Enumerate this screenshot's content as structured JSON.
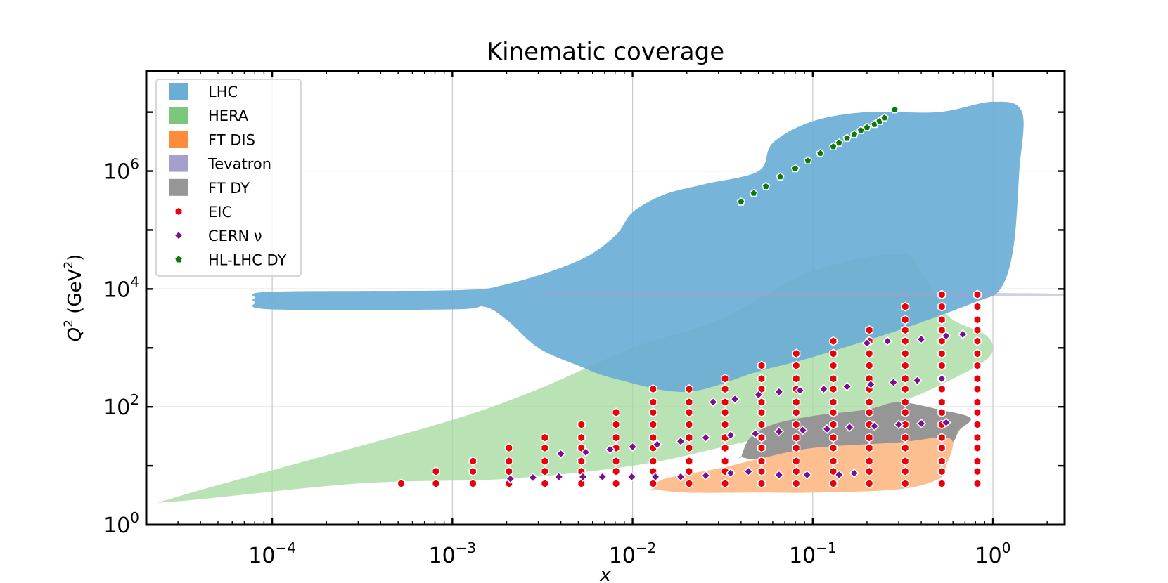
{
  "chart_data": {
    "type": "scatter",
    "title": "Kinematic coverage",
    "xlabel": "x",
    "ylabel": "Q² (GeV²)",
    "ylabel_main": "Q",
    "ylabel_sup": "2",
    "ylabel_rest_a": " (GeV",
    "ylabel_rest_b": ")",
    "xscale": "log",
    "yscale": "log",
    "xlim": [
      2e-05,
      2.5
    ],
    "ylim": [
      1,
      50000000
    ],
    "grid": true,
    "x_ticks": [
      {
        "base": "10",
        "exp": "−4",
        "value": 0.0001
      },
      {
        "base": "10",
        "exp": "−3",
        "value": 0.001
      },
      {
        "base": "10",
        "exp": "−2",
        "value": 0.01
      },
      {
        "base": "10",
        "exp": "−1",
        "value": 0.1
      },
      {
        "base": "10",
        "exp": "0",
        "value": 1
      }
    ],
    "y_ticks": [
      {
        "base": "10",
        "exp": "0",
        "value": 1
      },
      {
        "base": "10",
        "exp": "2",
        "value": 100
      },
      {
        "base": "10",
        "exp": "4",
        "value": 10000
      },
      {
        "base": "10",
        "exp": "6",
        "value": 1000000
      }
    ],
    "legend_position": "top-left",
    "legend": [
      {
        "label": "LHC",
        "kind": "patch",
        "color": "#6aaed6"
      },
      {
        "label": "HERA",
        "kind": "patch",
        "color": "#7bc87c"
      },
      {
        "label": "FT DIS",
        "kind": "patch",
        "color": "#fd8d3c"
      },
      {
        "label": "Tevatron",
        "kind": "patch",
        "color": "#a59fcc"
      },
      {
        "label": "FT DY",
        "kind": "patch",
        "color": "#969696"
      },
      {
        "label": "EIC",
        "kind": "hexagon",
        "color": "#e8000b"
      },
      {
        "label": "CERN ν",
        "kind": "diamond",
        "color": "#7b0f8c"
      },
      {
        "label": "HL-LHC DY",
        "kind": "pentagon",
        "color": "#0a7a0a"
      }
    ],
    "regions": [
      {
        "name": "HERA",
        "color": "#a6dba0",
        "opacity": 0.78,
        "points": [
          [
            3e-05,
            2.5
          ],
          [
            0.0003,
            5
          ],
          [
            0.002,
            6
          ],
          [
            0.01,
            10
          ],
          [
            0.03,
            20
          ],
          [
            0.1,
            50
          ],
          [
            0.3,
            120
          ],
          [
            0.6,
            300
          ],
          [
            0.9,
            600
          ],
          [
            1.0,
            1000
          ],
          [
            0.9,
            1700
          ],
          [
            0.6,
            3000
          ],
          [
            0.5,
            6000
          ],
          [
            0.4,
            20000
          ],
          [
            0.3,
            40000
          ],
          [
            0.1,
            20000
          ],
          [
            0.03,
            3000
          ],
          [
            0.01,
            1000
          ],
          [
            0.003,
            200
          ],
          [
            0.001,
            60
          ],
          [
            0.0002,
            15
          ],
          [
            3e-05,
            3
          ]
        ]
      },
      {
        "name": "LHC",
        "color": "#6aaed6",
        "opacity": 0.92,
        "points": [
          [
            8e-05,
            7000
          ],
          [
            0.0001,
            9000
          ],
          [
            0.001,
            9500
          ],
          [
            0.002,
            12000
          ],
          [
            0.005,
            30000
          ],
          [
            0.008,
            80000
          ],
          [
            0.01,
            200000
          ],
          [
            0.015,
            400000
          ],
          [
            0.025,
            600000
          ],
          [
            0.05,
            1000000
          ],
          [
            0.06,
            3000000
          ],
          [
            0.1,
            7000000
          ],
          [
            0.2,
            10000000
          ],
          [
            0.5,
            10000000
          ],
          [
            1.0,
            15000000
          ],
          [
            1.45,
            10000000
          ],
          [
            1.4,
            1000000
          ],
          [
            1.3,
            50000
          ],
          [
            1.1,
            10000
          ],
          [
            0.8,
            6000
          ],
          [
            0.3,
            2000
          ],
          [
            0.1,
            700
          ],
          [
            0.05,
            400
          ],
          [
            0.02,
            180
          ],
          [
            0.008,
            300
          ],
          [
            0.005,
            500
          ],
          [
            0.003,
            1000
          ],
          [
            0.002,
            3000
          ],
          [
            0.0015,
            5000
          ],
          [
            0.001,
            4500
          ],
          [
            0.0001,
            4500
          ],
          [
            8e-05,
            6000
          ]
        ]
      },
      {
        "name": "Tevatron",
        "color": "#a59fcc",
        "opacity": 0.5,
        "points": [
          [
            0.006,
            8500
          ],
          [
            1.4,
            8500
          ],
          [
            1.4,
            7500
          ],
          [
            0.006,
            7500
          ]
        ]
      },
      {
        "name": "FT DY",
        "color": "#969696",
        "opacity": 1.0,
        "points": [
          [
            0.04,
            14
          ],
          [
            0.045,
            30
          ],
          [
            0.06,
            50
          ],
          [
            0.1,
            70
          ],
          [
            0.2,
            90
          ],
          [
            0.3,
            120
          ],
          [
            0.5,
            90
          ],
          [
            0.75,
            65
          ],
          [
            0.65,
            40
          ],
          [
            0.6,
            25
          ],
          [
            0.5,
            16
          ],
          [
            0.3,
            15
          ],
          [
            0.1,
            15
          ],
          [
            0.05,
            13
          ],
          [
            0.04,
            14
          ]
        ]
      },
      {
        "name": "FT DIS",
        "color": "#fdbe90",
        "opacity": 1.0,
        "points": [
          [
            0.013,
            4
          ],
          [
            0.02,
            3.5
          ],
          [
            0.05,
            3.5
          ],
          [
            0.1,
            3.5
          ],
          [
            0.3,
            4
          ],
          [
            0.5,
            6
          ],
          [
            0.55,
            10
          ],
          [
            0.6,
            25
          ],
          [
            0.5,
            30
          ],
          [
            0.3,
            25
          ],
          [
            0.1,
            20
          ],
          [
            0.05,
            13
          ],
          [
            0.03,
            9
          ],
          [
            0.015,
            6
          ],
          [
            0.013,
            4
          ]
        ]
      }
    ],
    "series": [
      {
        "name": "EIC",
        "marker": "hexagon",
        "color": "#e8000b",
        "x_levels": [
          0.00052,
          0.00081,
          0.0013,
          0.00206,
          0.00326,
          0.0052,
          0.0081,
          0.013,
          0.0206,
          0.0326,
          0.052,
          0.081,
          0.13,
          0.206,
          0.326,
          0.52,
          0.82
        ],
        "q2_max": [
          5,
          8,
          12,
          20,
          30,
          50,
          80,
          200,
          200,
          400,
          700,
          1000,
          1300,
          2800,
          5000,
          8000,
          8000
        ],
        "q2_grid": [
          5,
          8,
          12,
          20,
          30,
          50,
          80,
          120,
          200,
          300,
          500,
          800,
          1300,
          2000,
          3000,
          5000,
          8000
        ]
      },
      {
        "name": "CERN ν",
        "marker": "diamond",
        "color": "#7b0f8c",
        "points": [
          [
            0.0021,
            6
          ],
          [
            0.0028,
            6.3
          ],
          [
            0.0039,
            6.5
          ],
          [
            0.0053,
            6.5
          ],
          [
            0.0068,
            6.5
          ],
          [
            0.0099,
            6.5
          ],
          [
            0.0134,
            6.5
          ],
          [
            0.0185,
            6.5
          ],
          [
            0.0255,
            6.8
          ],
          [
            0.035,
            7.5
          ],
          [
            0.044,
            8
          ],
          [
            0.065,
            7
          ],
          [
            0.093,
            7
          ],
          [
            0.14,
            7
          ],
          [
            0.17,
            7.5
          ],
          [
            0.004,
            16
          ],
          [
            0.0055,
            17
          ],
          [
            0.0075,
            19
          ],
          [
            0.01,
            21
          ],
          [
            0.0137,
            23
          ],
          [
            0.0185,
            26
          ],
          [
            0.0255,
            30
          ],
          [
            0.035,
            33
          ],
          [
            0.048,
            35
          ],
          [
            0.065,
            38
          ],
          [
            0.088,
            40
          ],
          [
            0.12,
            42
          ],
          [
            0.16,
            45
          ],
          [
            0.22,
            47
          ],
          [
            0.3,
            50
          ],
          [
            0.4,
            52
          ],
          [
            0.55,
            54
          ],
          [
            0.028,
            120
          ],
          [
            0.037,
            135
          ],
          [
            0.05,
            160
          ],
          [
            0.065,
            180
          ],
          [
            0.085,
            190
          ],
          [
            0.115,
            200
          ],
          [
            0.155,
            220
          ],
          [
            0.21,
            240
          ],
          [
            0.28,
            260
          ],
          [
            0.38,
            280
          ],
          [
            0.52,
            300
          ],
          [
            0.2,
            1200
          ],
          [
            0.26,
            1300
          ],
          [
            0.4,
            1400
          ],
          [
            0.55,
            1600
          ],
          [
            0.68,
            1700
          ]
        ]
      },
      {
        "name": "HL-LHC DY",
        "marker": "pentagon",
        "color": "#0a7a0a",
        "points": [
          [
            0.04,
            300000
          ],
          [
            0.047,
            420000
          ],
          [
            0.055,
            550000
          ],
          [
            0.066,
            800000
          ],
          [
            0.08,
            1100000
          ],
          [
            0.094,
            1500000
          ],
          [
            0.11,
            2000000
          ],
          [
            0.13,
            2600000
          ],
          [
            0.14,
            3000000
          ],
          [
            0.155,
            3600000
          ],
          [
            0.17,
            4200000
          ],
          [
            0.185,
            4900000
          ],
          [
            0.2,
            5500000
          ],
          [
            0.22,
            6200000
          ],
          [
            0.235,
            7000000
          ],
          [
            0.25,
            8000000
          ],
          [
            0.285,
            11000000
          ]
        ]
      }
    ]
  }
}
